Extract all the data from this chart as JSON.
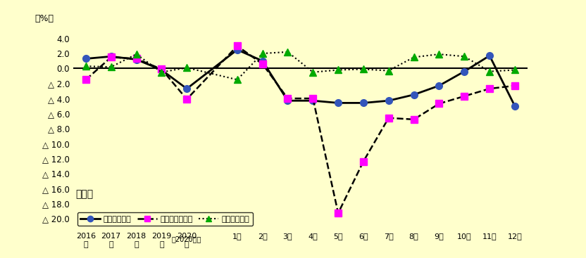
{
  "background_color": "#FFFFCC",
  "title": "製造業",
  "ylabel": "（%）",
  "annual_labels": [
    "2016\n年",
    "2017\n年",
    "2018\n年",
    "2019\n年",
    "2020\n年"
  ],
  "monthly_labels": [
    "1月",
    "2月",
    "3月",
    "4月",
    "5月",
    "6月",
    "7月",
    "8月",
    "9月",
    "10月",
    "11月",
    "12月"
  ],
  "note_label": "（2020年）",
  "yticks": [
    4.0,
    2.0,
    0.0,
    -2.0,
    -4.0,
    -6.0,
    -8.0,
    -10.0,
    -12.0,
    -14.0,
    -16.0,
    -18.0,
    -20.0
  ],
  "ytick_labels": [
    "4.0",
    "2.0",
    "0.0",
    "△ 2.0",
    "△ 4.0",
    "△ 6.0",
    "△ 8.0",
    "△ 10.0",
    "△ 12.0",
    "△ 14.0",
    "△ 16.0",
    "△ 18.0",
    "△ 20.0"
  ],
  "ylim": [
    -21.5,
    5.0
  ],
  "series": {
    "cash_wages": {
      "label": "現金給与総額",
      "line_color": "#000000",
      "linestyle": "-",
      "marker": "o",
      "markercolor": "#3355BB",
      "markeredgecolor": "#3355BB",
      "linewidth": 2.0,
      "markersize": 7,
      "values": [
        1.3,
        1.6,
        1.2,
        -0.2,
        -2.7,
        2.5,
        1.0,
        -4.3,
        -4.3,
        -4.6,
        -4.6,
        -4.3,
        -3.5,
        -2.3,
        -0.4,
        1.7,
        -5.0
      ]
    },
    "total_hours": {
      "label": "総実労働時間数",
      "line_color": "#000000",
      "linestyle": "--",
      "marker": "s",
      "markercolor": "#FF00FF",
      "markeredgecolor": "#FF00FF",
      "linewidth": 1.8,
      "markersize": 7,
      "values": [
        -1.5,
        1.5,
        1.3,
        -0.1,
        -4.1,
        3.0,
        0.6,
        -4.0,
        -4.0,
        -19.3,
        -12.4,
        -6.6,
        -6.8,
        -4.7,
        -3.7,
        -2.7,
        -2.3
      ]
    },
    "employees": {
      "label": "常用労働者数",
      "line_color": "#000000",
      "linestyle": ":",
      "marker": "^",
      "markercolor": "#00AA00",
      "markeredgecolor": "#00AA00",
      "linewidth": 1.5,
      "markersize": 7,
      "values": [
        0.3,
        0.2,
        1.9,
        -0.5,
        0.1,
        -1.5,
        2.0,
        2.2,
        -0.5,
        -0.2,
        -0.1,
        -0.3,
        1.5,
        1.9,
        1.6,
        -0.4,
        -0.2
      ]
    }
  }
}
